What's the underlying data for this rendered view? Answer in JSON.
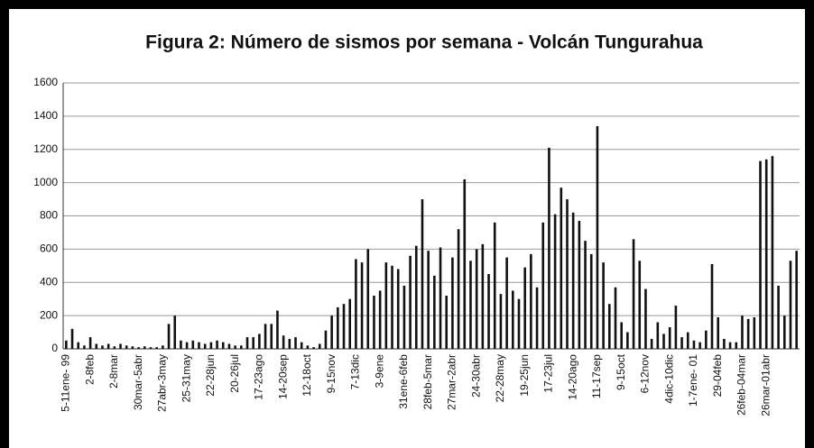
{
  "chart_data": {
    "type": "bar",
    "title": "Figura 2:  Número de sismos por semana - Volcán Tungurahua",
    "categories": [
      "5-11ene- 99",
      null,
      null,
      null,
      "2-8feb",
      null,
      null,
      null,
      "2-8mar",
      null,
      null,
      null,
      "30mar-5abr",
      null,
      null,
      null,
      "27abr-3may",
      null,
      null,
      null,
      "25-31may",
      null,
      null,
      null,
      "22-28jun",
      null,
      null,
      null,
      "20-26jul",
      null,
      null,
      null,
      "17-23ago",
      null,
      null,
      null,
      "14-20sep",
      null,
      null,
      null,
      "12-18oct",
      null,
      null,
      null,
      "9-15nov",
      null,
      null,
      null,
      "7-13dic",
      null,
      null,
      null,
      "3-9ene",
      null,
      null,
      null,
      "31ene-6feb",
      null,
      null,
      null,
      "28feb-5mar",
      null,
      null,
      null,
      "27mar-2abr",
      null,
      null,
      null,
      "24-30abr",
      null,
      null,
      null,
      "22-28may",
      null,
      null,
      null,
      "19-25jun",
      null,
      null,
      null,
      "17-23jul",
      null,
      null,
      null,
      "14-20ago",
      null,
      null,
      null,
      "11-17sep",
      null,
      null,
      null,
      "9-15oct",
      null,
      null,
      null,
      "6-12nov",
      null,
      null,
      null,
      "4dic-10dic",
      null,
      null,
      null,
      "1-7ene- 01",
      null,
      null,
      null,
      "29-04feb",
      null,
      null,
      null,
      "26feb-04mar",
      null,
      null,
      null,
      "26mar-01abr",
      null,
      null,
      null,
      null,
      null
    ],
    "values": [
      50,
      120,
      40,
      20,
      70,
      30,
      20,
      30,
      15,
      30,
      20,
      15,
      10,
      15,
      10,
      10,
      20,
      150,
      200,
      50,
      40,
      50,
      40,
      30,
      40,
      50,
      40,
      30,
      20,
      20,
      70,
      70,
      90,
      150,
      150,
      230,
      80,
      60,
      70,
      40,
      20,
      10,
      30,
      110,
      200,
      250,
      270,
      300,
      540,
      520,
      600,
      320,
      350,
      520,
      500,
      480,
      380,
      560,
      620,
      900,
      590,
      440,
      610,
      320,
      550,
      720,
      1020,
      530,
      600,
      630,
      450,
      760,
      330,
      550,
      350,
      300,
      490,
      570,
      370,
      760,
      1210,
      810,
      970,
      900,
      820,
      770,
      650,
      570,
      1340,
      520,
      270,
      370,
      160,
      100,
      660,
      530,
      360,
      60,
      160,
      90,
      130,
      260,
      70,
      100,
      50,
      40,
      110,
      510,
      190,
      60,
      40,
      40,
      200,
      180,
      190,
      1130,
      1140,
      1160,
      380,
      200,
      530,
      590
    ],
    "color": "#111111",
    "ylim": [
      0,
      1600
    ],
    "yticks": [
      0,
      200,
      400,
      600,
      800,
      1000,
      1200,
      1400,
      1600
    ],
    "grid": true
  }
}
